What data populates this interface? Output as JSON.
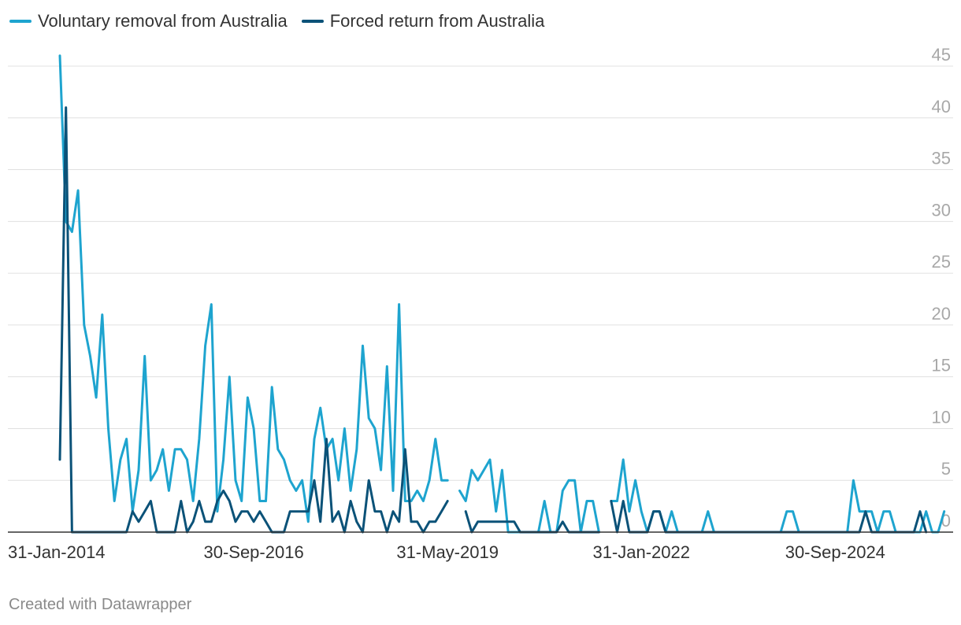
{
  "chart_data": {
    "type": "line",
    "title": "",
    "xlabel": "",
    "ylabel": "",
    "ylim": [
      0,
      45
    ],
    "y_ticks": [
      0,
      5,
      10,
      15,
      20,
      25,
      30,
      35,
      40,
      45
    ],
    "x_tick_labels": [
      "31-Jan-2014",
      "30-Sep-2016",
      "31-May-2019",
      "31-Jan-2022",
      "30-Sep-2024"
    ],
    "x_tick_index": [
      0,
      32,
      64,
      96,
      128
    ],
    "n_points": 141,
    "grid": true,
    "legend_position": "top-left",
    "series": [
      {
        "name": "Voluntary removal from Australia",
        "color": "#1ea4cf",
        "values": [
          46,
          30,
          29,
          33,
          20,
          17,
          13,
          21,
          10,
          3,
          7,
          9,
          2,
          6,
          17,
          5,
          6,
          8,
          4,
          8,
          8,
          7,
          3,
          9,
          18,
          22,
          2,
          7,
          15,
          5,
          3,
          13,
          10,
          3,
          3,
          14,
          8,
          7,
          5,
          4,
          5,
          1,
          9,
          12,
          8,
          9,
          5,
          10,
          4,
          8,
          18,
          11,
          10,
          6,
          16,
          4,
          22,
          3,
          3,
          4,
          3,
          5,
          9,
          5,
          5,
          null,
          4,
          3,
          6,
          5,
          6,
          7,
          2,
          6,
          0,
          0,
          0,
          0,
          0,
          0,
          3,
          0,
          0,
          4,
          5,
          5,
          0,
          3,
          3,
          0,
          null,
          3,
          3,
          7,
          2,
          5,
          2,
          0,
          2,
          2,
          0,
          2,
          0,
          0,
          0,
          0,
          0,
          2,
          0,
          0,
          0,
          0,
          0,
          0,
          0,
          0,
          0,
          0,
          0,
          0,
          2,
          2,
          0,
          0,
          0,
          0,
          0,
          0,
          0,
          0,
          0,
          5,
          2,
          2,
          2,
          0,
          2,
          2,
          0,
          0,
          0,
          0,
          0,
          2,
          0,
          0,
          2
        ]
      },
      {
        "name": "Forced return from Australia",
        "color": "#0b5278",
        "values": [
          7,
          41,
          0,
          0,
          0,
          0,
          0,
          0,
          0,
          0,
          0,
          0,
          2,
          1,
          2,
          3,
          0,
          0,
          0,
          0,
          3,
          0,
          1,
          3,
          1,
          1,
          3,
          4,
          3,
          1,
          2,
          2,
          1,
          2,
          1,
          0,
          0,
          0,
          2,
          2,
          2,
          2,
          5,
          1,
          9,
          1,
          2,
          0,
          3,
          1,
          0,
          5,
          2,
          2,
          0,
          2,
          1,
          8,
          1,
          1,
          0,
          1,
          1,
          2,
          3,
          null,
          null,
          2,
          0,
          1,
          1,
          1,
          1,
          1,
          1,
          1,
          0,
          0,
          0,
          0,
          0,
          0,
          0,
          1,
          0,
          0,
          0,
          0,
          0,
          0,
          null,
          3,
          0,
          3,
          0,
          0,
          0,
          0,
          2,
          2,
          0,
          0,
          0,
          0,
          0,
          0,
          0,
          0,
          0,
          0,
          0,
          0,
          0,
          0,
          0,
          0,
          0,
          0,
          0,
          0,
          0,
          0,
          0,
          0,
          0,
          0,
          0,
          0,
          0,
          0,
          0,
          0,
          0,
          2,
          0,
          0,
          0,
          0,
          0,
          0,
          0,
          0,
          2,
          0
        ]
      }
    ]
  },
  "footer": {
    "credit": "Created with Datawrapper"
  }
}
